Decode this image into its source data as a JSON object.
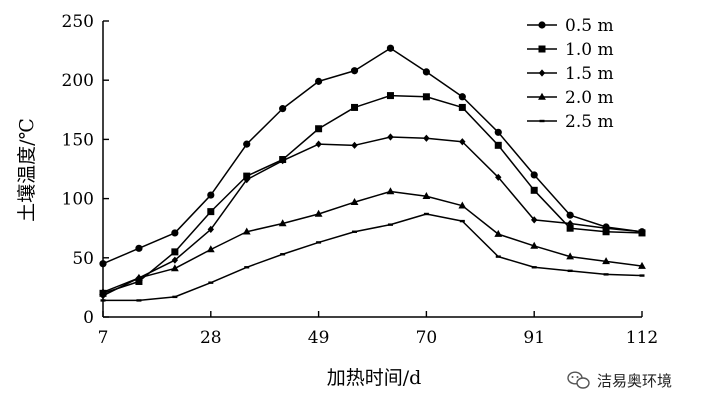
{
  "chart_data": {
    "type": "line",
    "xlabel": "加热时间/d",
    "ylabel": "土壤温度/℃",
    "x": [
      7,
      14,
      21,
      28,
      35,
      42,
      49,
      56,
      63,
      70,
      77,
      84,
      91,
      98,
      105,
      112
    ],
    "xticks": [
      7,
      28,
      49,
      70,
      91,
      112
    ],
    "xlim": [
      7,
      112
    ],
    "yticks": [
      0,
      50,
      100,
      150,
      200,
      250
    ],
    "ylim": [
      0,
      250
    ],
    "grid": false,
    "legend_position": "top-right",
    "series": [
      {
        "name": "0.5 m",
        "marker": "circle",
        "values": [
          45,
          58,
          71,
          103,
          146,
          176,
          199,
          208,
          227,
          207,
          186,
          156,
          120,
          86,
          76,
          72
        ]
      },
      {
        "name": "1.0 m",
        "marker": "square",
        "values": [
          20,
          30,
          55,
          89,
          119,
          133,
          159,
          177,
          187,
          186,
          177,
          145,
          107,
          75,
          72,
          71
        ]
      },
      {
        "name": "1.5 m",
        "marker": "diamond",
        "values": [
          18,
          33,
          48,
          74,
          116,
          132,
          146,
          145,
          152,
          151,
          148,
          118,
          82,
          79,
          75,
          72
        ]
      },
      {
        "name": "2.0 m",
        "marker": "triangle",
        "values": [
          21,
          33,
          41,
          57,
          72,
          79,
          87,
          97,
          106,
          102,
          94,
          70,
          60,
          51,
          47,
          43
        ]
      },
      {
        "name": "2.5 m",
        "marker": "dash",
        "values": [
          14,
          14,
          17,
          29,
          42,
          53,
          63,
          72,
          78,
          87,
          81,
          51,
          42,
          39,
          36,
          35
        ]
      }
    ]
  },
  "watermark": {
    "text": "洁易奥环境",
    "icon": "wechat-icon"
  }
}
